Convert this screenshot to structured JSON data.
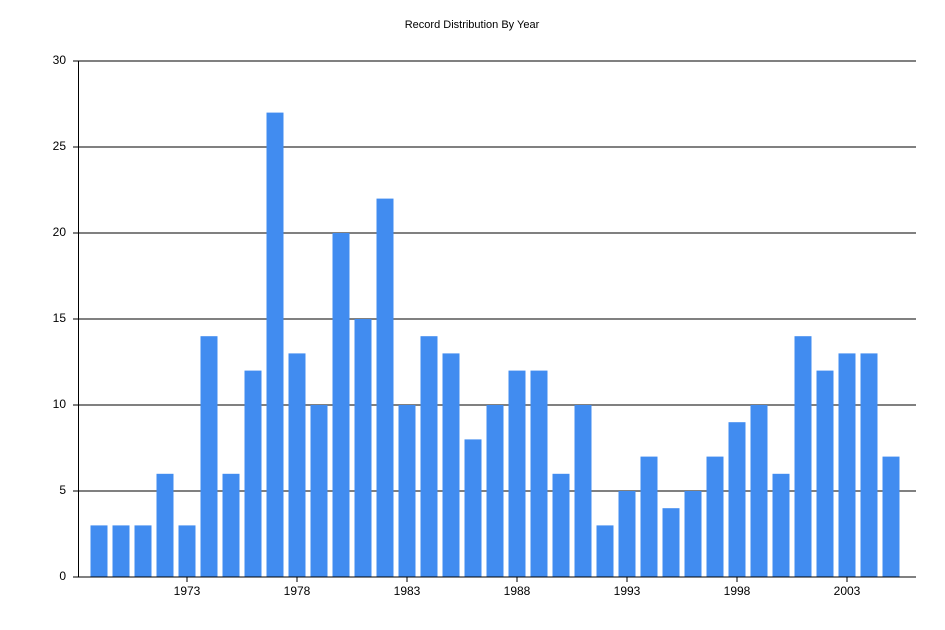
{
  "chart_data": {
    "type": "bar",
    "title": "Record Distribution By Year",
    "categories": [
      null,
      null,
      null,
      null,
      "1973",
      null,
      null,
      null,
      null,
      "1978",
      null,
      null,
      null,
      null,
      "1983",
      null,
      null,
      null,
      null,
      "1988",
      null,
      null,
      null,
      null,
      "1993",
      null,
      null,
      null,
      null,
      "1998",
      null,
      null,
      null,
      null,
      "2003",
      null,
      null
    ],
    "values": [
      3,
      3,
      3,
      6,
      3,
      14,
      6,
      12,
      27,
      13,
      10,
      20,
      15,
      22,
      10,
      14,
      13,
      8,
      10,
      12,
      12,
      6,
      10,
      3,
      5,
      7,
      4,
      5,
      7,
      9,
      10,
      6,
      14,
      12,
      13,
      13,
      7
    ],
    "color": "#418cf0",
    "ylim": [
      0,
      30
    ],
    "yticks": [
      0,
      5,
      10,
      15,
      20,
      25,
      30
    ],
    "grid": true
  }
}
